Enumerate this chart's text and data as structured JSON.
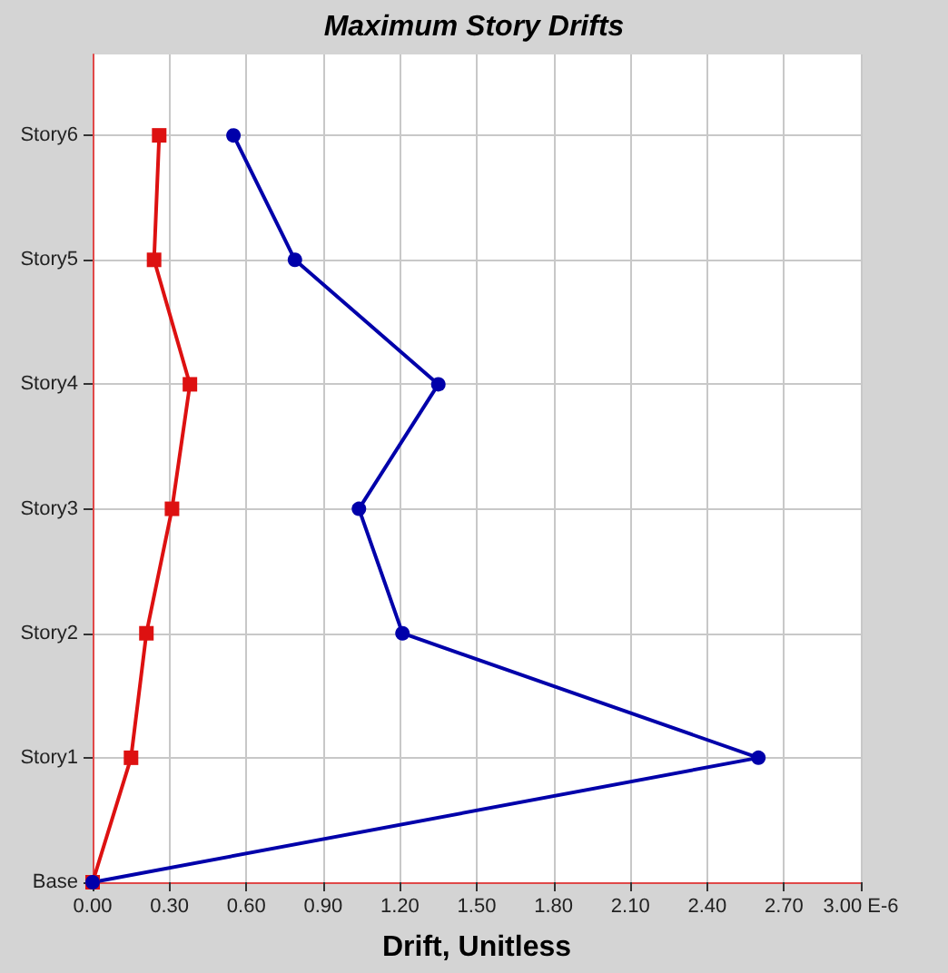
{
  "chart_data": {
    "type": "line",
    "title": "Maximum Story Drifts",
    "xlabel": "Drift, Unitless",
    "orientation": "horizontal",
    "categories": [
      "Story6",
      "Story5",
      "Story4",
      "Story3",
      "Story2",
      "Story1",
      "Base"
    ],
    "series": [
      {
        "color": "#dd1111",
        "marker": "square",
        "values": [
          0.26,
          0.24,
          0.38,
          0.31,
          0.21,
          0.15,
          0
        ]
      },
      {
        "color": "#0000aa",
        "marker": "circle",
        "values": [
          0.55,
          0.79,
          1.35,
          1.04,
          1.21,
          2.6,
          0
        ]
      }
    ],
    "xlim": [
      0,
      3
    ],
    "xticks": [
      {
        "value": 0,
        "label": "0.00"
      },
      {
        "value": 0.3,
        "label": "0.30"
      },
      {
        "value": 0.6,
        "label": "0.60"
      },
      {
        "value": 0.9,
        "label": "0.90"
      },
      {
        "value": 1.2,
        "label": "1.20"
      },
      {
        "value": 1.5,
        "label": "1.50"
      },
      {
        "value": 1.8,
        "label": "1.80"
      },
      {
        "value": 2.1,
        "label": "2.10"
      },
      {
        "value": 2.4,
        "label": "2.40"
      },
      {
        "value": 2.7,
        "label": "2.70"
      },
      {
        "value": 3,
        "label": "3.00 E-6"
      }
    ],
    "grid": true,
    "line_style": "solid"
  }
}
